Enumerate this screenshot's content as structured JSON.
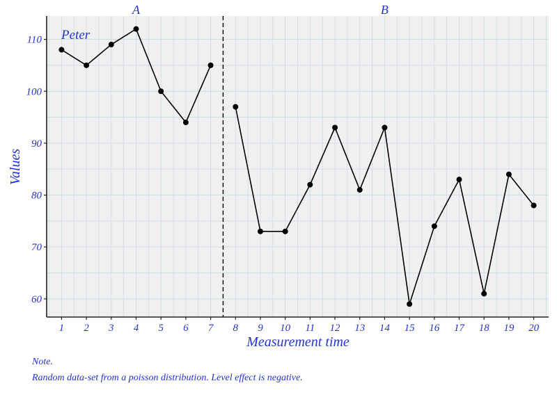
{
  "chart_data": {
    "type": "line",
    "title": "",
    "xlabel": "Measurement time",
    "ylabel": "Values",
    "x": [
      1,
      2,
      3,
      4,
      5,
      6,
      7,
      8,
      9,
      10,
      11,
      12,
      13,
      14,
      15,
      16,
      17,
      18,
      19,
      20
    ],
    "series": [
      {
        "name": "Peter",
        "values": [
          108,
          105,
          109,
          112,
          100,
          94,
          105,
          97,
          73,
          73,
          82,
          93,
          81,
          93,
          59,
          74,
          83,
          61,
          84,
          78
        ]
      }
    ],
    "phases": [
      {
        "label": "A",
        "start": 1,
        "end": 7
      },
      {
        "label": "B",
        "start": 8,
        "end": 20
      }
    ],
    "phase_change_x": 7.5,
    "case_label": "Peter",
    "yticks": [
      60,
      70,
      80,
      90,
      100,
      110
    ],
    "xticks": [
      1,
      2,
      3,
      4,
      5,
      6,
      7,
      8,
      9,
      10,
      11,
      12,
      13,
      14,
      15,
      16,
      17,
      18,
      19,
      20
    ],
    "ylim": [
      56.5,
      114.5
    ],
    "xlim": [
      0.4,
      20.6
    ],
    "grid": true,
    "legend": "none"
  },
  "note": {
    "heading": "Note.",
    "text": "Random data-set from a poisson distribution. Level effect is negative."
  },
  "colors": {
    "label": "#2433d4",
    "panel_bg": "#f0f0f0",
    "grid": "#c9dce6",
    "line": "#000000"
  }
}
